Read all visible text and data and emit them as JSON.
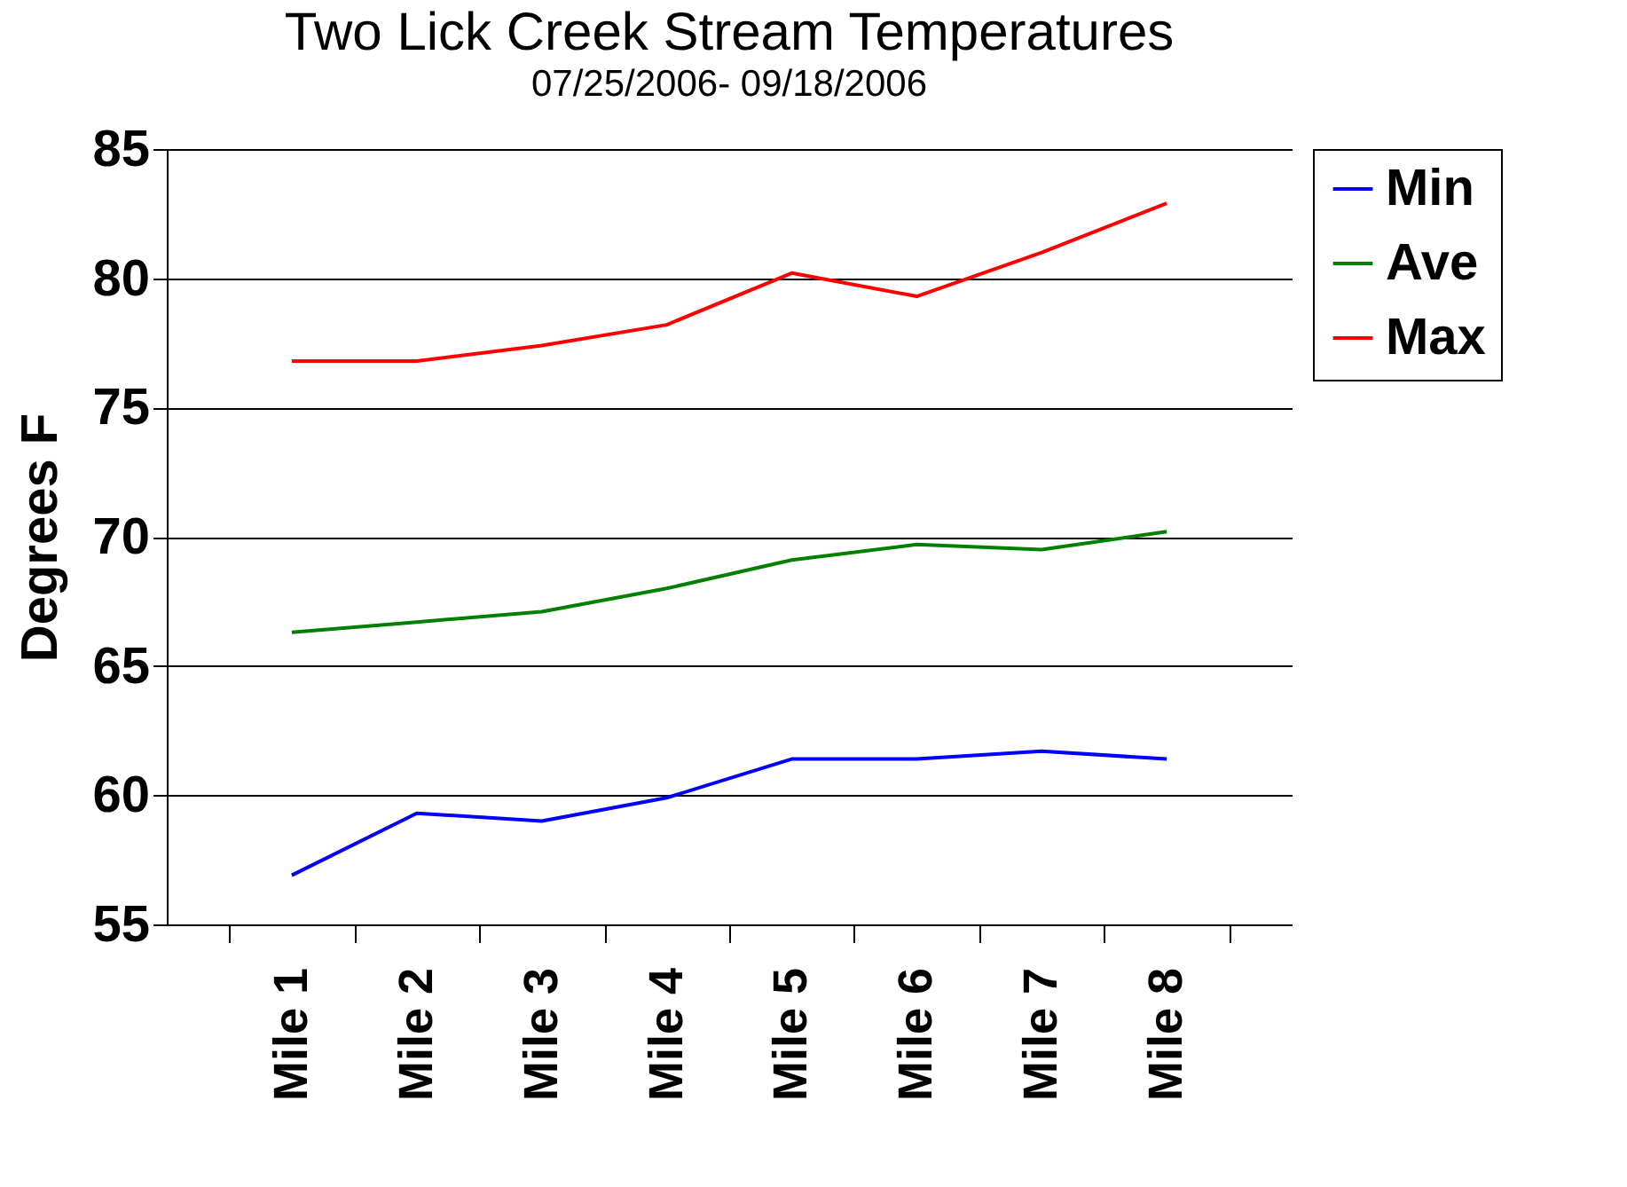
{
  "chart_data": {
    "type": "line",
    "title": "Two Lick Creek Stream Temperatures",
    "subtitle": "07/25/2006- 09/18/2006",
    "ylabel": "Degrees F",
    "categories": [
      "Mile 1",
      "Mile 2",
      "Mile 3",
      "Mile 4",
      "Mile 5",
      "Mile 6",
      "Mile 7",
      "Mile 8"
    ],
    "series": [
      {
        "name": "Min",
        "color": "#0000ff",
        "values": [
          56.9,
          59.3,
          59.0,
          59.9,
          61.4,
          61.4,
          61.7,
          61.4
        ]
      },
      {
        "name": "Ave",
        "color": "#008000",
        "values": [
          66.3,
          66.7,
          67.1,
          68.0,
          69.1,
          69.7,
          69.5,
          70.2
        ]
      },
      {
        "name": "Max",
        "color": "#ff0000",
        "values": [
          76.8,
          76.8,
          77.4,
          78.2,
          80.2,
          79.3,
          81.0,
          82.9
        ]
      }
    ],
    "ylim": [
      55,
      85
    ],
    "yticks": [
      55,
      60,
      65,
      70,
      75,
      80,
      85
    ],
    "grid": "y",
    "legend": "right",
    "marker": "none",
    "line_style": "solid"
  }
}
